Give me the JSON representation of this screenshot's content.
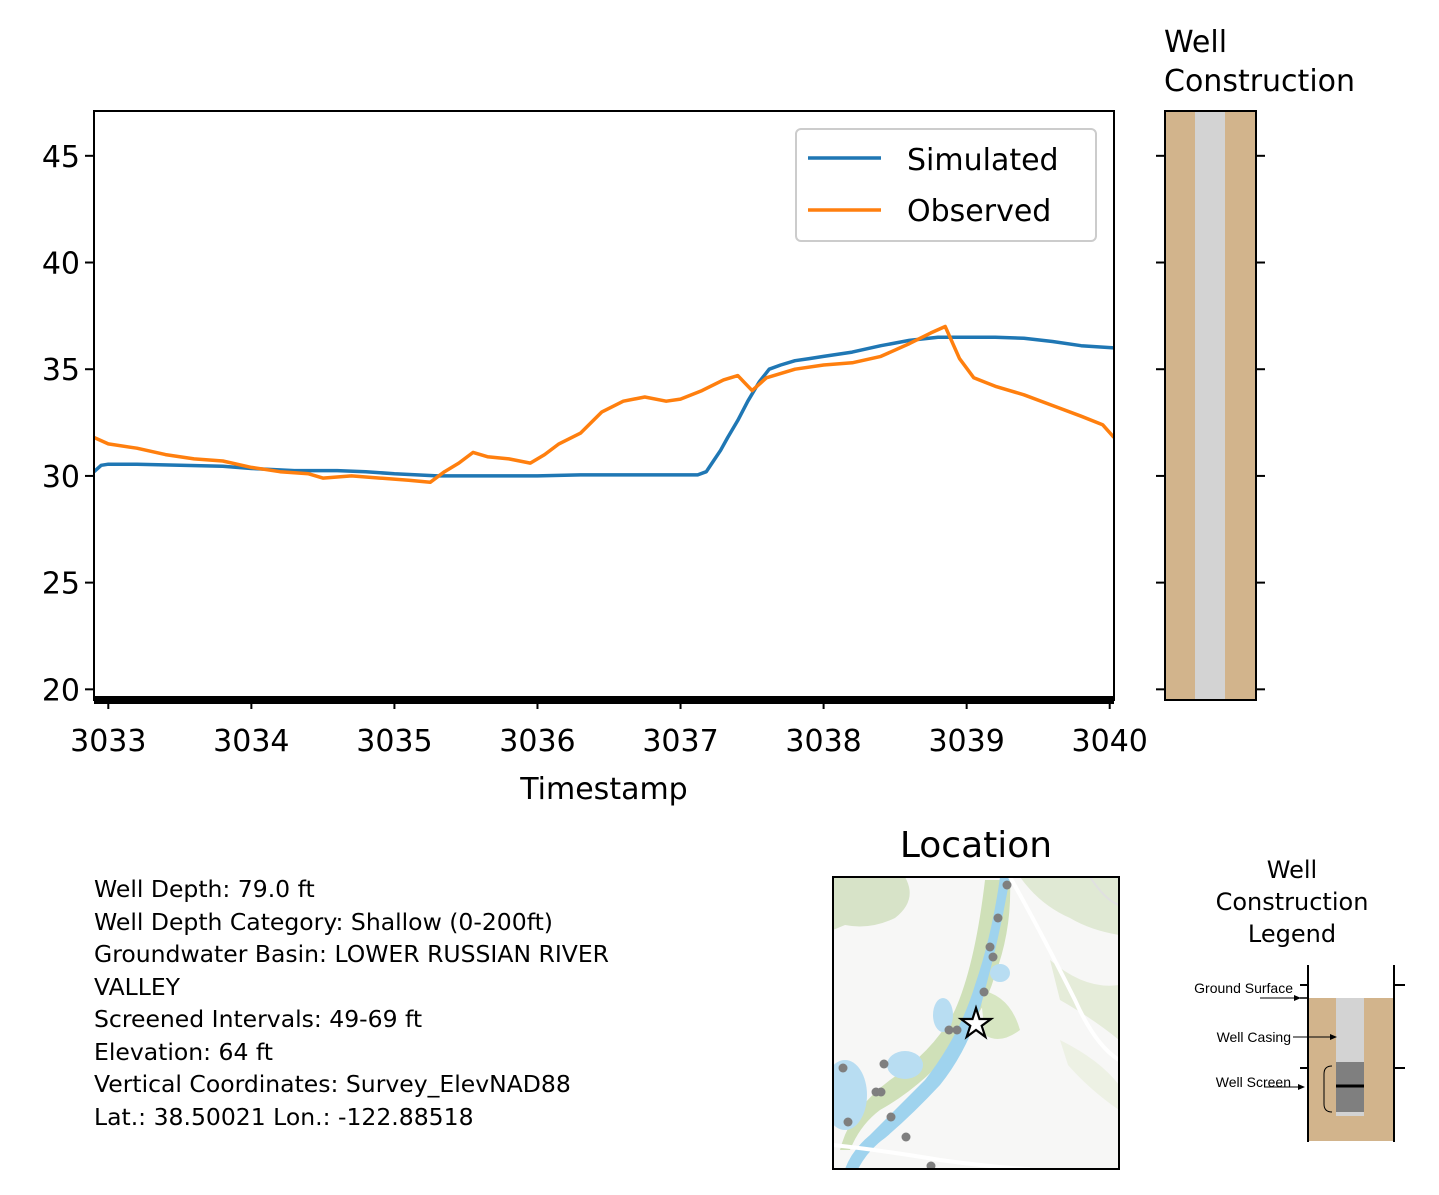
{
  "chart_data": {
    "type": "line",
    "xlabel": "Timestamp",
    "ylabel": "",
    "xlim": [
      3032.9,
      3040.03
    ],
    "ylim": [
      19.5,
      47.1
    ],
    "x_ticks": [
      "3033",
      "3034",
      "3035",
      "3036",
      "3037",
      "3038",
      "3039",
      "3040"
    ],
    "y_ticks": [
      "20",
      "25",
      "30",
      "35",
      "40",
      "45"
    ],
    "grid": false,
    "legend_placement": "upper-right",
    "series": [
      {
        "name": "Simulated",
        "color": "#1f77b4",
        "x": [
          3032.9,
          3032.95,
          3033.0,
          3033.2,
          3033.5,
          3033.8,
          3034.0,
          3034.3,
          3034.6,
          3034.8,
          3035.0,
          3035.3,
          3035.6,
          3035.8,
          3036.0,
          3036.3,
          3036.6,
          3036.8,
          3037.0,
          3037.12,
          3037.18,
          3037.22,
          3037.28,
          3037.33,
          3037.4,
          3037.47,
          3037.55,
          3037.62,
          3037.7,
          3037.8,
          3037.9,
          3038.0,
          3038.2,
          3038.4,
          3038.6,
          3038.8,
          3039.0,
          3039.2,
          3039.4,
          3039.6,
          3039.8,
          3040.03
        ],
        "y": [
          30.2,
          30.5,
          30.55,
          30.55,
          30.5,
          30.45,
          30.35,
          30.25,
          30.25,
          30.2,
          30.1,
          30.0,
          30.0,
          30.0,
          30.0,
          30.05,
          30.05,
          30.05,
          30.05,
          30.05,
          30.2,
          30.6,
          31.2,
          31.8,
          32.6,
          33.5,
          34.4,
          35.0,
          35.2,
          35.4,
          35.5,
          35.6,
          35.8,
          36.1,
          36.35,
          36.5,
          36.5,
          36.5,
          36.45,
          36.3,
          36.1,
          36.0
        ]
      },
      {
        "name": "Observed",
        "color": "#ff7f0e",
        "x": [
          3032.9,
          3033.0,
          3033.2,
          3033.4,
          3033.6,
          3033.8,
          3034.0,
          3034.2,
          3034.4,
          3034.5,
          3034.7,
          3034.9,
          3035.1,
          3035.25,
          3035.35,
          3035.45,
          3035.55,
          3035.65,
          3035.8,
          3035.95,
          3036.05,
          3036.15,
          3036.3,
          3036.45,
          3036.6,
          3036.75,
          3036.9,
          3037.0,
          3037.15,
          3037.3,
          3037.4,
          3037.5,
          3037.6,
          3037.8,
          3038.0,
          3038.2,
          3038.4,
          3038.6,
          3038.75,
          3038.85,
          3038.95,
          3039.05,
          3039.2,
          3039.4,
          3039.6,
          3039.8,
          3039.95,
          3040.03
        ],
        "y": [
          31.8,
          31.5,
          31.3,
          31.0,
          30.8,
          30.7,
          30.4,
          30.2,
          30.1,
          29.9,
          30.0,
          29.9,
          29.8,
          29.7,
          30.2,
          30.6,
          31.1,
          30.9,
          30.8,
          30.6,
          31.0,
          31.5,
          32.0,
          33.0,
          33.5,
          33.7,
          33.5,
          33.6,
          34.0,
          34.5,
          34.7,
          34.0,
          34.6,
          35.0,
          35.2,
          35.3,
          35.6,
          36.2,
          36.7,
          37.0,
          35.5,
          34.6,
          34.2,
          33.8,
          33.3,
          32.8,
          32.4,
          31.8
        ]
      }
    ]
  },
  "well_construction": {
    "title_line1": "Well",
    "title_line2": "Construction",
    "ground_color": "#d2b48c",
    "casing_color": "#d3d3d3"
  },
  "info": {
    "lines": [
      "Well Depth: 79.0 ft",
      "Well Depth Category: Shallow (0-200ft)",
      "Groundwater Basin: LOWER RUSSIAN RIVER",
      "VALLEY",
      "Screened Intervals: 49-69 ft",
      "Elevation: 64 ft",
      "Vertical Coordinates: Survey_ElevNAD88",
      "Lat.: 38.50021 Lon.: -122.88518"
    ]
  },
  "location": {
    "title": "Location",
    "marker_icon": "star-icon"
  },
  "legend_diagram": {
    "title_line1": "Well",
    "title_line2": "Construction",
    "title_line3": "Legend",
    "ground_surface": "Ground Surface",
    "well_casing": "Well Casing",
    "well_screen": "Well Screen"
  }
}
